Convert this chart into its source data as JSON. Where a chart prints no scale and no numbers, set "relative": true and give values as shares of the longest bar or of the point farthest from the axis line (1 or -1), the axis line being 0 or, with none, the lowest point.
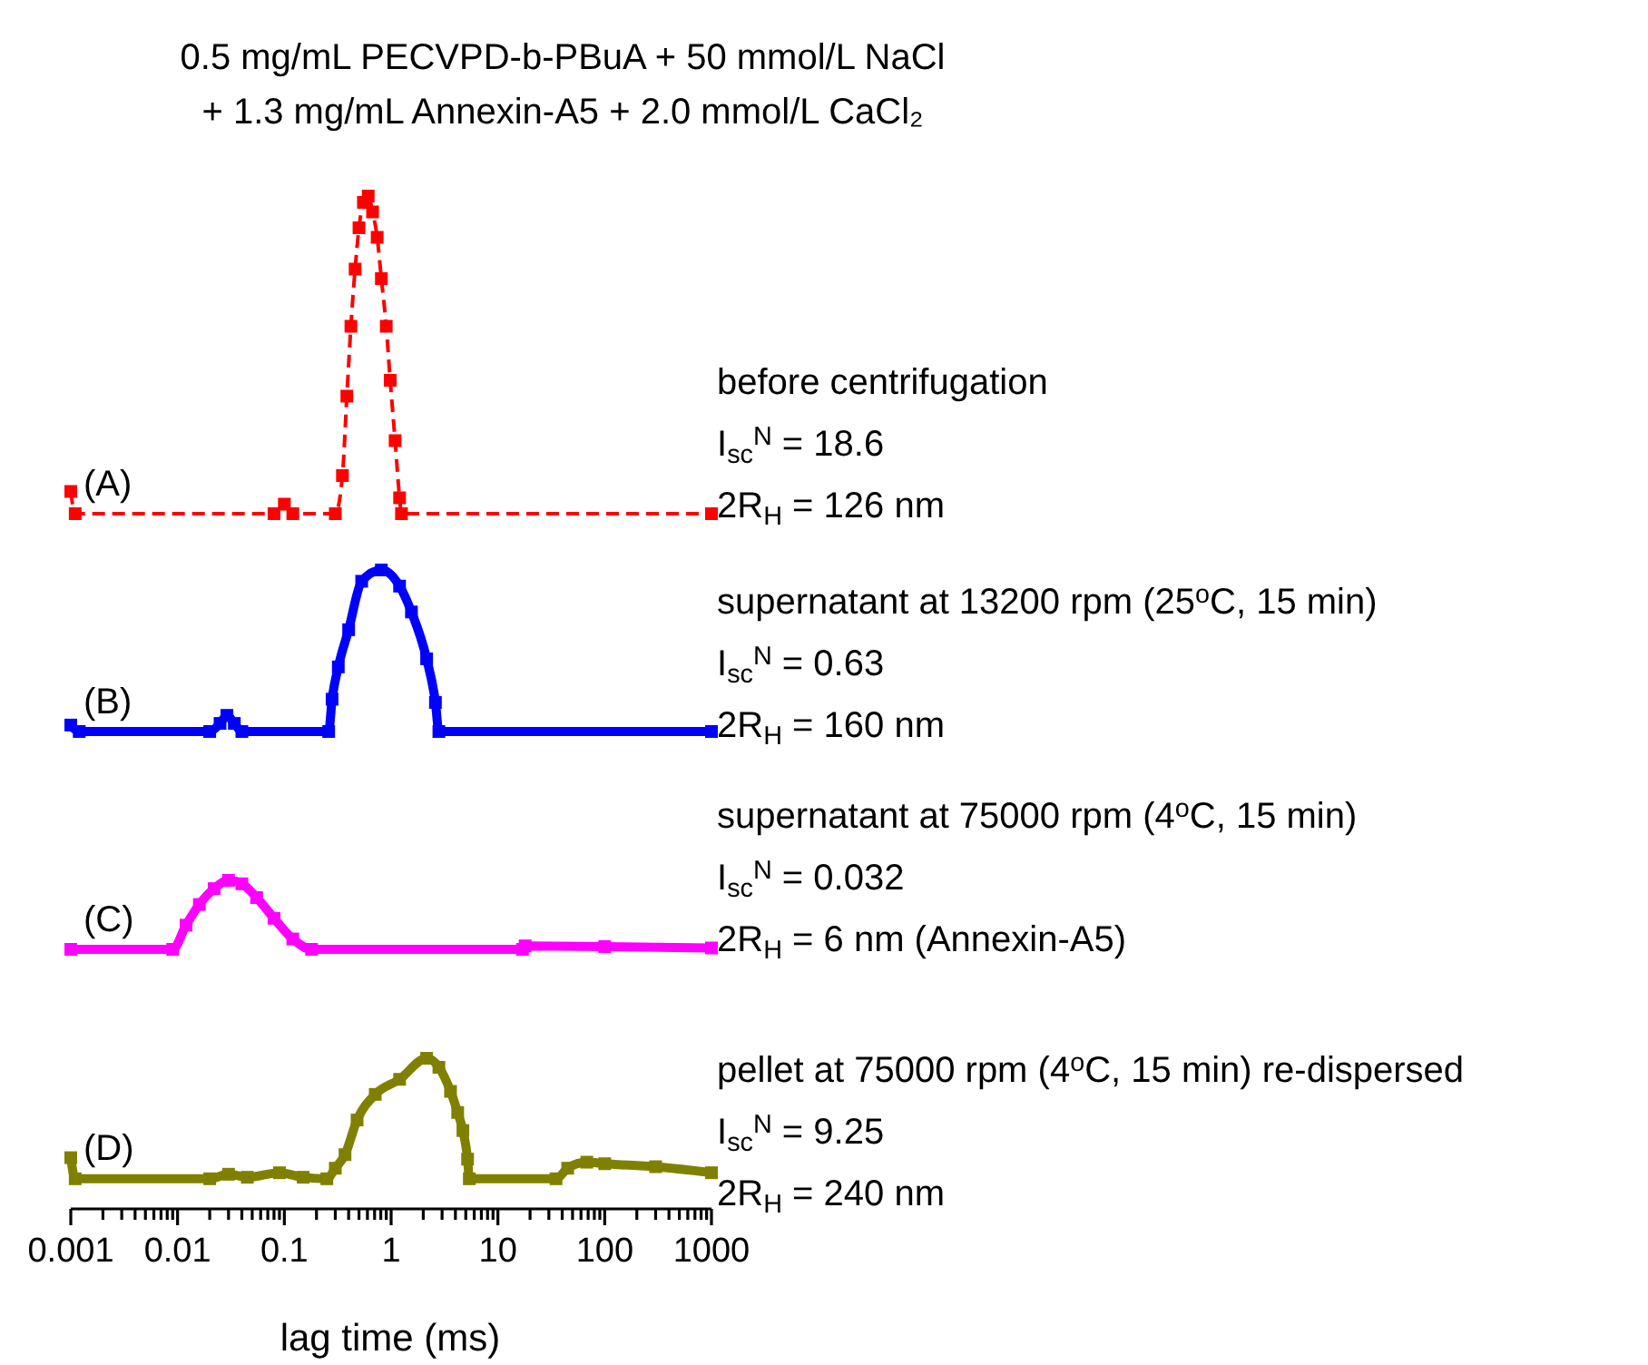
{
  "chart_data": [
    {
      "type": "line",
      "title": "0.5 mg/mL PECVPD-b-PBuA + 50 mmol/L NaCl",
      "subtitle": "+ 1.3 mg/mL Annexin-A5  +  2.0 mmol/L CaCl₂",
      "relative": true,
      "log": "x",
      "xlim": [
        0.001,
        1000
      ],
      "tick_labels": false,
      "marker": "square",
      "line_style": "dashed",
      "annotations": [
        "(A)",
        "before centrifugation",
        "I$_{sc}$$^{N}$ = 18.6",
        "2R$_{H}$ = 126 nm"
      ],
      "x": [
        0.001,
        0.0011,
        0.08,
        0.1,
        0.12,
        0.3,
        0.35,
        0.385,
        0.42,
        0.46,
        0.5,
        0.55,
        0.61,
        0.67,
        0.74,
        0.81,
        0.9,
        0.98,
        1.09,
        1.2,
        1.25,
        1000
      ],
      "series": [
        {
          "color": "#ff0000",
          "values": [
            0.07,
            0,
            0,
            0.03,
            0,
            0,
            0.12,
            0.37,
            0.59,
            0.77,
            0.9,
            0.98,
            1,
            0.95,
            0.87,
            0.74,
            0.59,
            0.42,
            0.23,
            0.05,
            0,
            0
          ]
        }
      ]
    },
    {
      "type": "line",
      "relative": true,
      "log": "x",
      "xlim": [
        0.001,
        1000
      ],
      "tick_labels": false,
      "marker": "square",
      "line_style": "solid",
      "annotations": [
        "(B)",
        "supernatant at 13200 rpm (25$^{o}$C, 15 min)",
        "I$_{sc}$$^{N}$ = 0.63",
        "2R$_{H}$ = 160 nm"
      ],
      "x": [
        0.001,
        0.0012,
        0.02,
        0.025,
        0.029,
        0.034,
        0.04,
        0.26,
        0.28,
        0.32,
        0.4,
        0.53,
        0.81,
        1.2,
        1.55,
        2.15,
        2.6,
        2.8,
        1000
      ],
      "series": [
        {
          "color": "#0000ff",
          "values": [
            0.04,
            0,
            0,
            0.05,
            0.1,
            0.05,
            0,
            0,
            0.2,
            0.4,
            0.63,
            0.93,
            1,
            0.9,
            0.74,
            0.45,
            0.18,
            0,
            0
          ]
        }
      ]
    },
    {
      "type": "line",
      "relative": true,
      "log": "x",
      "xlim": [
        0.001,
        1000
      ],
      "tick_labels": false,
      "marker": "square",
      "line_style": "solid",
      "annotations": [
        "(C)",
        "supernatant at 75000 rpm (4$^{o}$C, 15 min)",
        "I$_{sc}$$^{N}$ = 0.032",
        "2R$_{H}$ = 6 nm (Annexin-A5)"
      ],
      "x": [
        0.001,
        0.009,
        0.012,
        0.016,
        0.022,
        0.03,
        0.04,
        0.055,
        0.08,
        0.12,
        0.18,
        17,
        18,
        100,
        1000
      ],
      "series": [
        {
          "color": "#ff00ff",
          "values": [
            0,
            0,
            0.35,
            0.65,
            0.88,
            1,
            0.95,
            0.75,
            0.45,
            0.15,
            0,
            0,
            0.05,
            0.04,
            0.02
          ]
        }
      ]
    },
    {
      "type": "line",
      "relative": true,
      "log": "x",
      "xlim": [
        0.001,
        1000
      ],
      "tick_labels": "x",
      "marker": "square",
      "line_style": "solid",
      "xlabel": "lag time (ms)",
      "annotations": [
        "(D)",
        "pellet at 75000 rpm (4$^{o}$C, 15 min) re-dispersed",
        "I$_{sc}$$^{N}$ = 9.25",
        "2R$_{H}$ = 240 nm"
      ],
      "xticks": [
        {
          "value": 0.001,
          "label": "0.001"
        },
        {
          "value": 0.002,
          "label": null
        },
        {
          "value": 0.003,
          "label": null
        },
        {
          "value": 0.004,
          "label": null
        },
        {
          "value": 0.005,
          "label": null
        },
        {
          "value": 0.006,
          "label": null
        },
        {
          "value": 0.007,
          "label": null
        },
        {
          "value": 0.008,
          "label": null
        },
        {
          "value": 0.009,
          "label": null
        },
        {
          "value": 0.01,
          "label": "0.01"
        },
        {
          "value": 0.02,
          "label": null
        },
        {
          "value": 0.03,
          "label": null
        },
        {
          "value": 0.04,
          "label": null
        },
        {
          "value": 0.05,
          "label": null
        },
        {
          "value": 0.06,
          "label": null
        },
        {
          "value": 0.07,
          "label": null
        },
        {
          "value": 0.08,
          "label": null
        },
        {
          "value": 0.09,
          "label": null
        },
        {
          "value": 0.1,
          "label": "0.1"
        },
        {
          "value": 0.2,
          "label": null
        },
        {
          "value": 0.3,
          "label": null
        },
        {
          "value": 0.4,
          "label": null
        },
        {
          "value": 0.5,
          "label": null
        },
        {
          "value": 0.6,
          "label": null
        },
        {
          "value": 0.7,
          "label": null
        },
        {
          "value": 0.8,
          "label": null
        },
        {
          "value": 0.9,
          "label": null
        },
        1,
        {
          "value": 2,
          "label": null
        },
        {
          "value": 3,
          "label": null
        },
        {
          "value": 4,
          "label": null
        },
        {
          "value": 5,
          "label": null
        },
        {
          "value": 6,
          "label": null
        },
        {
          "value": 7,
          "label": null
        },
        {
          "value": 8,
          "label": null
        },
        {
          "value": 9,
          "label": null
        },
        10,
        {
          "value": 20,
          "label": null
        },
        {
          "value": 30,
          "label": null
        },
        {
          "value": 40,
          "label": null
        },
        {
          "value": 50,
          "label": null
        },
        {
          "value": 60,
          "label": null
        },
        {
          "value": 70,
          "label": null
        },
        {
          "value": 80,
          "label": null
        },
        {
          "value": 90,
          "label": null
        },
        100,
        {
          "value": 200,
          "label": null
        },
        {
          "value": 300,
          "label": null
        },
        {
          "value": 400,
          "label": null
        },
        {
          "value": 500,
          "label": null
        },
        {
          "value": 600,
          "label": null
        },
        {
          "value": 700,
          "label": null
        },
        {
          "value": 800,
          "label": null
        },
        {
          "value": 900,
          "label": null
        },
        1000
      ],
      "x": [
        0.001,
        0.0011,
        0.02,
        0.03,
        0.045,
        0.09,
        0.15,
        0.25,
        0.3,
        0.37,
        0.48,
        0.71,
        1.2,
        2.15,
        2.8,
        3.6,
        4.2,
        4.7,
        5.2,
        5.4,
        35,
        45,
        68,
        100,
        300,
        1000
      ],
      "series": [
        {
          "color": "#808000",
          "values": [
            0.34,
            0.2,
            0.2,
            0.23,
            0.21,
            0.24,
            0.21,
            0.2,
            0.27,
            0.36,
            0.59,
            0.76,
            0.86,
            1,
            0.94,
            0.78,
            0.64,
            0.52,
            0.33,
            0.2,
            0.2,
            0.27,
            0.31,
            0.3,
            0.28,
            0.24
          ]
        }
      ]
    }
  ]
}
